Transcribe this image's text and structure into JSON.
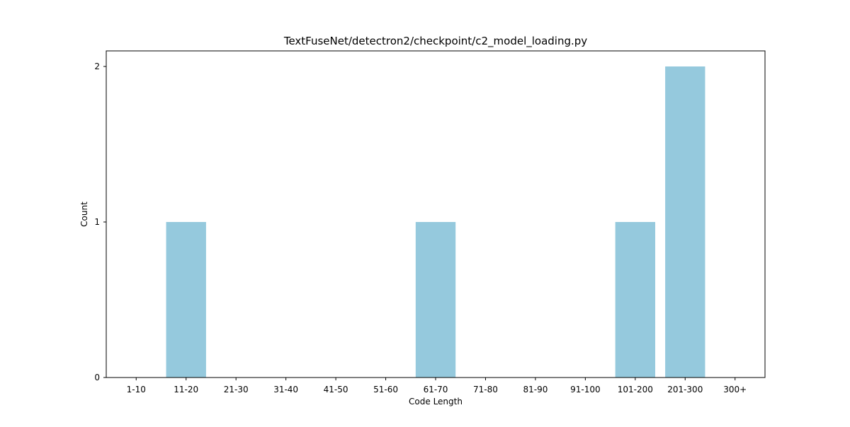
{
  "chart_data": {
    "type": "bar",
    "title": "TextFuseNet/detectron2/checkpoint/c2_model_loading.py",
    "xlabel": "Code Length",
    "ylabel": "Count",
    "categories": [
      "1-10",
      "11-20",
      "21-30",
      "31-40",
      "41-50",
      "51-60",
      "61-70",
      "71-80",
      "81-90",
      "91-100",
      "101-200",
      "201-300",
      "300+"
    ],
    "values": [
      0,
      1,
      0,
      0,
      0,
      0,
      1,
      0,
      0,
      0,
      1,
      2,
      0
    ],
    "ylim": [
      0,
      2.1
    ],
    "yticks": [
      0,
      1,
      2
    ],
    "bar_color": "#95c9dd",
    "grid": false,
    "legend": "none"
  }
}
